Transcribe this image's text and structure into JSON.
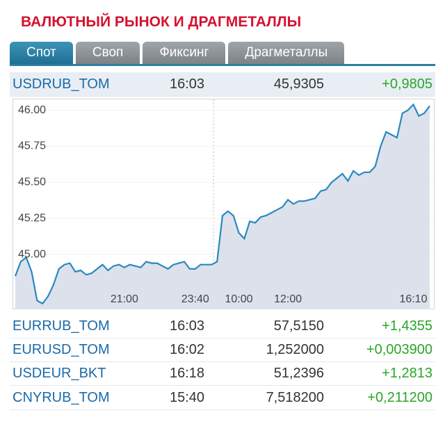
{
  "title": "ВАЛЮТНЫЙ РЫНОК И ДРАГМЕТАЛЛЫ",
  "tabs": [
    "Спот",
    "Своп",
    "Фиксинг",
    "Драгметаллы"
  ],
  "rows": [
    [
      "USDRUB_TOM",
      "16:03",
      "45,9305",
      "+0,9805"
    ],
    [
      "EURRUB_TOM",
      "16:03",
      "57,5150",
      "+1,4355"
    ],
    [
      "EURUSD_TOM",
      "16:02",
      "1,252000",
      "+0,003900"
    ],
    [
      "USDEUR_BKT",
      "16:18",
      "51,2396",
      "+1,2813"
    ],
    [
      "CNYRUB_TOM",
      "15:40",
      "7,518200",
      "+0,211200"
    ]
  ],
  "chart_data": {
    "type": "line",
    "color": "#2a88bf",
    "categories": [
      null,
      null,
      null,
      null,
      null,
      null,
      null,
      null,
      null,
      null,
      null,
      null,
      null,
      null,
      null,
      null,
      null,
      null,
      null,
      null,
      "21:00",
      null,
      null,
      null,
      null,
      null,
      null,
      null,
      null,
      null,
      null,
      null,
      null,
      "23:40",
      null,
      null,
      null,
      null,
      null,
      null,
      null,
      "10:00",
      null,
      null,
      null,
      null,
      null,
      null,
      null,
      null,
      "12:00",
      null,
      null,
      null,
      null,
      null,
      null,
      null,
      null,
      null,
      null,
      null,
      null,
      null,
      null,
      null,
      null,
      null,
      null,
      null,
      null,
      null,
      null,
      "16:10",
      null,
      null,
      null
    ],
    "values": [
      44.85,
      44.95,
      44.98,
      44.88,
      44.68,
      44.66,
      44.71,
      44.79,
      44.9,
      44.93,
      44.94,
      44.88,
      44.89,
      44.86,
      44.87,
      44.9,
      44.93,
      44.89,
      44.92,
      44.93,
      44.91,
      44.93,
      44.92,
      44.91,
      44.95,
      44.94,
      44.94,
      44.92,
      44.9,
      44.93,
      44.94,
      44.95,
      44.9,
      44.9,
      44.93,
      44.93,
      44.93,
      44.95,
      45.27,
      45.3,
      45.27,
      45.15,
      45.11,
      45.23,
      45.22,
      45.26,
      45.27,
      45.29,
      45.31,
      45.33,
      45.38,
      45.35,
      45.37,
      45.37,
      45.38,
      45.39,
      45.44,
      45.45,
      45.5,
      45.53,
      45.56,
      45.51,
      45.58,
      45.55,
      45.57,
      45.57,
      45.61,
      45.75,
      45.85,
      45.83,
      45.81,
      45.98,
      46.0,
      46.04,
      45.96,
      45.98,
      46.03
    ],
    "ylim": [
      44.62,
      46.08
    ],
    "yticks": [
      {
        "value": 45,
        "label": "45.00"
      },
      {
        "value": 45.25,
        "label": "45.25"
      },
      {
        "value": 45.5,
        "label": "45.50"
      },
      {
        "value": 45.75,
        "label": "45.75"
      },
      {
        "value": 46,
        "label": "46.00"
      }
    ],
    "grid": true
  }
}
